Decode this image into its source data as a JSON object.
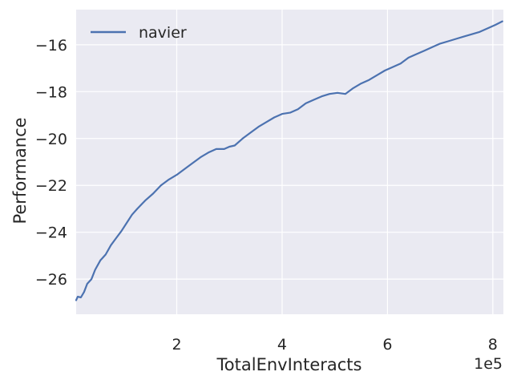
{
  "chart_data": {
    "type": "line",
    "xlabel": "TotalEnvInteracts",
    "ylabel": "Performance",
    "x_offset_label": "1e5",
    "x_scale": 100000,
    "xlim": [
      9000,
      820000
    ],
    "ylim": [
      -27.5,
      -14.5
    ],
    "x_ticks": [
      200000,
      400000,
      600000,
      800000
    ],
    "x_tick_labels": [
      "2",
      "4",
      "6",
      "8"
    ],
    "y_ticks": [
      -26,
      -24,
      -22,
      -20,
      -18,
      -16
    ],
    "y_tick_labels": [
      "−26",
      "−24",
      "−22",
      "−20",
      "−18",
      "−16"
    ],
    "grid": true,
    "legend_position": "top-left",
    "colors": {
      "background": "#eaeaf2",
      "grid": "#ffffff",
      "line": "#4c72b0"
    },
    "series": [
      {
        "name": "navier",
        "x": [
          9000,
          12000,
          18000,
          24000,
          30000,
          38000,
          45000,
          55000,
          65000,
          75000,
          85000,
          95000,
          105000,
          115000,
          125000,
          140000,
          155000,
          170000,
          185000,
          200000,
          215000,
          230000,
          245000,
          260000,
          275000,
          290000,
          300000,
          310000,
          325000,
          340000,
          355000,
          370000,
          385000,
          400000,
          415000,
          430000,
          445000,
          460000,
          475000,
          490000,
          505000,
          520000,
          535000,
          550000,
          565000,
          580000,
          595000,
          610000,
          625000,
          640000,
          655000,
          670000,
          685000,
          700000,
          715000,
          730000,
          745000,
          760000,
          775000,
          790000,
          805000,
          818000
        ],
        "y": [
          -26.9,
          -26.75,
          -26.78,
          -26.55,
          -26.2,
          -26.0,
          -25.6,
          -25.2,
          -24.95,
          -24.55,
          -24.25,
          -23.95,
          -23.6,
          -23.25,
          -23.0,
          -22.65,
          -22.35,
          -22.0,
          -21.75,
          -21.55,
          -21.3,
          -21.05,
          -20.8,
          -20.6,
          -20.45,
          -20.45,
          -20.35,
          -20.3,
          -20.0,
          -19.75,
          -19.5,
          -19.3,
          -19.1,
          -18.95,
          -18.9,
          -18.75,
          -18.5,
          -18.35,
          -18.2,
          -18.1,
          -18.05,
          -18.1,
          -17.85,
          -17.65,
          -17.5,
          -17.3,
          -17.1,
          -16.95,
          -16.8,
          -16.55,
          -16.4,
          -16.25,
          -16.1,
          -15.95,
          -15.85,
          -15.75,
          -15.65,
          -15.55,
          -15.45,
          -15.3,
          -15.15,
          -15.0
        ]
      }
    ]
  }
}
